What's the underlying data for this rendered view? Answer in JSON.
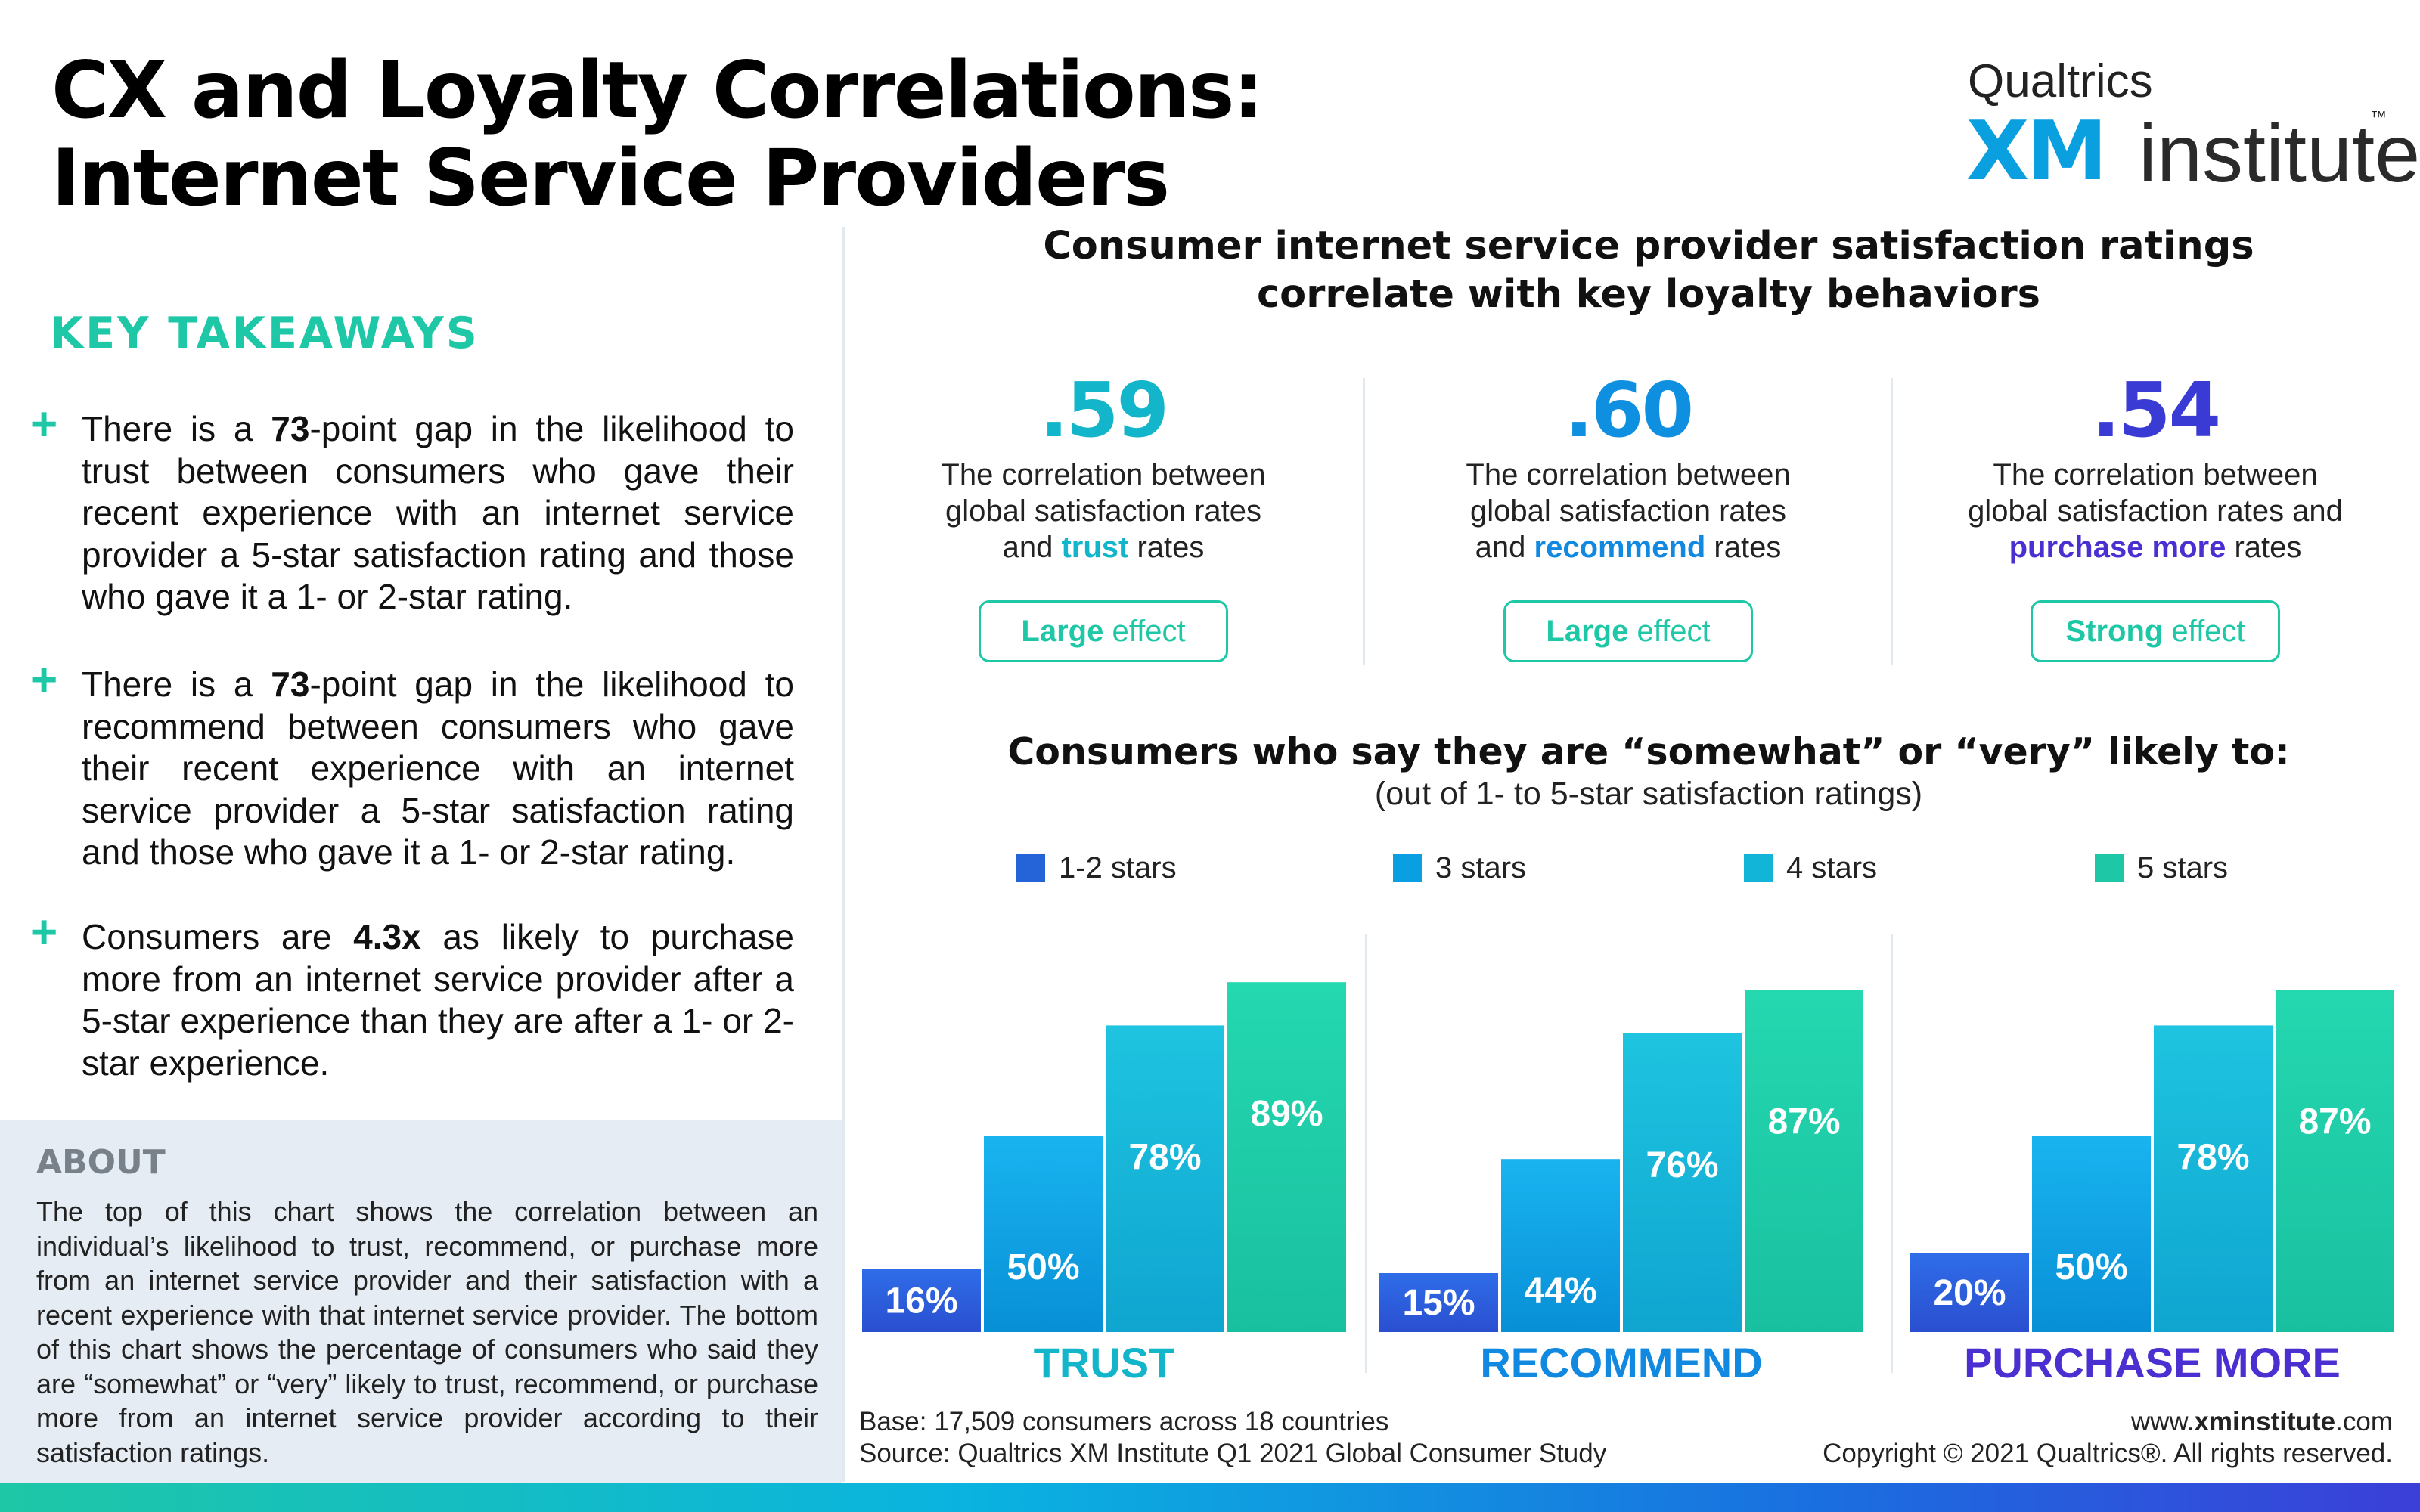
{
  "header": {
    "title_line1": "CX and Loyalty Correlations:",
    "title_line2": "Internet Service Providers",
    "logo_top": "Qualtrics",
    "logo_xm": "XM",
    "logo_institute": "institute",
    "logo_tm": "™"
  },
  "left": {
    "key_takeaways_heading": "KEY TAKEAWAYS",
    "plus": "+",
    "takeaways": [
      {
        "pre": "There is a ",
        "bold": "73",
        "post": "-point gap in the likelihood to trust between consumers who gave their recent experience with an internet service provider a 5-star satisfaction rating and those who gave it a 1- or 2-star rating."
      },
      {
        "pre": "There is a ",
        "bold": "73",
        "post": "-point gap in the likelihood to recommend between consumers who gave their recent experience with an internet service provider a 5-star satisfaction rating and those who gave it a 1- or 2-star rating."
      },
      {
        "pre": "Consumers are ",
        "bold": "4.3x",
        "post": " as likely to purchase more from an internet service provider after a 5-star experience than they are after a 1- or 2-star experience."
      }
    ],
    "about_heading": "ABOUT",
    "about_text": "The top of this chart shows the correlation between an individual’s likelihood to trust, recommend, or purchase more from an internet service provider and their satisfaction with a recent experience with that internet service provider. The bottom of this chart shows the percentage of consumers who said they are “somewhat” or “very” likely to trust, recommend, or purchase more from an internet service provider according to their satisfaction ratings."
  },
  "correlations": {
    "title_line1": "Consumer internet service provider satisfaction ratings",
    "title_line2": "correlate with key loyalty behaviors",
    "items": [
      {
        "value": ".59",
        "line1": "The correlation between",
        "line2": "global satisfaction rates",
        "pre3": "and ",
        "keyword": "trust",
        "post3": " rates",
        "effect_bold": "Large",
        "effect_rest": " effect",
        "color": "#12b5c9",
        "kw_color": "#12b5c9"
      },
      {
        "value": ".60",
        "line1": "The correlation between",
        "line2": "global satisfaction rates",
        "pre3": "and ",
        "keyword": "recommend",
        "post3": " rates",
        "effect_bold": "Large",
        "effect_rest": " effect",
        "color": "#0f8fe0",
        "kw_color": "#1189e0"
      },
      {
        "value": ".54",
        "line1": "The correlation between",
        "line2": "global satisfaction rates and",
        "pre3": "",
        "keyword": "purchase more",
        "post3": " rates",
        "effect_bold": "Strong",
        "effect_rest": " effect",
        "color": "#3a3ad4",
        "kw_color": "#4b2fd0"
      }
    ]
  },
  "chart_title": "Consumers who say they are “somewhat” or “very” likely to:",
  "chart_subtitle": "(out of 1- to 5-star satisfaction ratings)",
  "chart_data": {
    "type": "bar",
    "title": "Consumers who say they are “somewhat” or “very” likely to:",
    "subtitle": "(out of 1- to 5-star satisfaction ratings)",
    "categories": [
      "TRUST",
      "RECOMMEND",
      "PURCHASE MORE"
    ],
    "category_colors": [
      "#12b5c9",
      "#1189e0",
      "#4b2fd0"
    ],
    "series": [
      {
        "name": "1-2 stars",
        "values": [
          16,
          15,
          20
        ],
        "color": "#2563d8"
      },
      {
        "name": "3 stars",
        "values": [
          50,
          44,
          50
        ],
        "color": "#0a9fe0"
      },
      {
        "name": "4 stars",
        "values": [
          78,
          76,
          78
        ],
        "color": "#12b5d8"
      },
      {
        "name": "5 stars",
        "values": [
          89,
          87,
          87
        ],
        "color": "#1ec7a6"
      }
    ],
    "value_suffix": "%",
    "ylim": [
      0,
      100
    ],
    "legend_position": "top",
    "grid": false
  },
  "footer": {
    "base": "Base: 17,509 consumers across 18 countries",
    "source": "Source: Qualtrics XM Institute Q1 2021 Global Consumer Study",
    "url_pre": "www.",
    "url_bold": "xminstitute",
    "url_post": ".com",
    "copyright": "Copyright © 2021 Qualtrics®. All rights reserved."
  }
}
